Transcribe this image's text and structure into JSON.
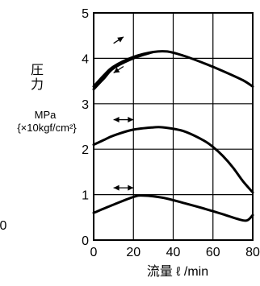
{
  "chart_data": {
    "type": "line",
    "ylabel_lines": [
      "圧",
      "力",
      "MPa",
      "{×10kgf/cm²}"
    ],
    "xlabel": "流量 ℓ /min",
    "edge_label": "0",
    "x": {
      "lim": [
        0,
        80
      ],
      "ticks": [
        "0",
        "20",
        "40",
        "60",
        "80"
      ]
    },
    "y": {
      "lim": [
        0,
        5
      ],
      "ticks": [
        "0",
        "1",
        "2",
        "3",
        "4",
        "5"
      ]
    },
    "grid": true,
    "series": [
      {
        "x": [
          0,
          5,
          10,
          20,
          30,
          37,
          45,
          55,
          65,
          75,
          80
        ],
        "y": [
          3.38,
          3.62,
          3.82,
          4.03,
          4.14,
          4.15,
          4.06,
          3.9,
          3.72,
          3.52,
          3.38
        ]
      },
      {
        "x": [
          0,
          5,
          10,
          20,
          30
        ],
        "y": [
          3.32,
          3.55,
          3.78,
          4.0,
          4.14
        ]
      },
      {
        "x": [
          0,
          5,
          10,
          20,
          30,
          35,
          45,
          55,
          60,
          65,
          70,
          75,
          80
        ],
        "y": [
          2.1,
          2.2,
          2.3,
          2.43,
          2.48,
          2.48,
          2.4,
          2.2,
          2.05,
          1.85,
          1.6,
          1.3,
          1.05
        ]
      },
      {
        "x": [
          0,
          10,
          20,
          25,
          35,
          45,
          55,
          65,
          72,
          77,
          80
        ],
        "y": [
          0.6,
          0.78,
          0.95,
          0.98,
          0.93,
          0.82,
          0.7,
          0.57,
          0.47,
          0.43,
          0.55
        ]
      }
    ],
    "annotations": [
      {
        "type": "arrow",
        "direction": "right",
        "x_from": 10,
        "x_to": 15,
        "y": 4.4
      },
      {
        "type": "arrow",
        "direction": "left",
        "x_from": 15,
        "x_to": 10,
        "y": 3.75
      },
      {
        "type": "double-arrow",
        "x_from": 10,
        "x_to": 20,
        "y": 2.65
      },
      {
        "type": "double-arrow",
        "x_from": 10,
        "x_to": 20,
        "y": 1.15
      }
    ]
  }
}
